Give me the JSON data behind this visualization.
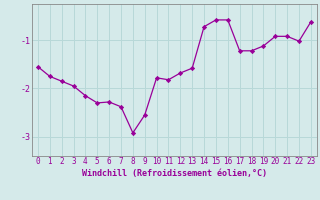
{
  "x": [
    0,
    1,
    2,
    3,
    4,
    5,
    6,
    7,
    8,
    9,
    10,
    11,
    12,
    13,
    14,
    15,
    16,
    17,
    18,
    19,
    20,
    21,
    22,
    23
  ],
  "y": [
    -1.55,
    -1.75,
    -1.85,
    -1.95,
    -2.15,
    -2.3,
    -2.28,
    -2.38,
    -2.92,
    -2.55,
    -1.78,
    -1.82,
    -1.68,
    -1.58,
    -0.72,
    -0.58,
    -0.58,
    -1.22,
    -1.22,
    -1.12,
    -0.92,
    -0.92,
    -1.02,
    -0.62
  ],
  "line_color": "#990099",
  "marker": "D",
  "markersize": 2.2,
  "linewidth": 0.9,
  "xlabel": "Windchill (Refroidissement éolien,°C)",
  "xlabel_fontsize": 6.0,
  "xtick_labels": [
    "0",
    "1",
    "2",
    "3",
    "4",
    "5",
    "6",
    "7",
    "8",
    "9",
    "10",
    "11",
    "12",
    "13",
    "14",
    "15",
    "16",
    "17",
    "18",
    "19",
    "20",
    "21",
    "22",
    "23"
  ],
  "ytick_labels": [
    "-3",
    "-2",
    "-1"
  ],
  "yticks": [
    -3,
    -2,
    -1
  ],
  "ylim": [
    -3.4,
    -0.25
  ],
  "xlim": [
    -0.5,
    23.5
  ],
  "bg_color": "#d5eaea",
  "grid_color": "#b8d8d8",
  "tick_fontsize": 5.5,
  "border_color": "#888888"
}
